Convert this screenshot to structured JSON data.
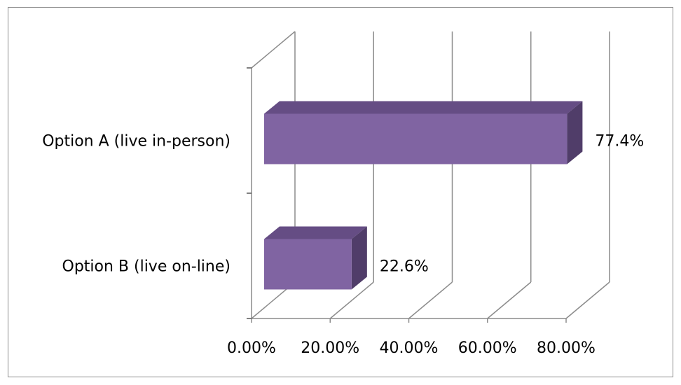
{
  "chart_data": {
    "type": "bar",
    "orientation": "horizontal",
    "style": "3d",
    "categories": [
      "Option A (live in-person)",
      "Option B (live on-line)"
    ],
    "values": [
      77.4,
      22.6
    ],
    "data_labels": [
      "77.4%",
      "22.6%"
    ],
    "x_ticks": [
      "0.00%",
      "20.00%",
      "40.00%",
      "60.00%",
      "80.00%"
    ],
    "xlim": [
      0,
      80
    ],
    "grid": true,
    "legend": "none",
    "title": "",
    "xlabel": "",
    "ylabel": "",
    "colors": {
      "bar_front": "#8064a2",
      "bar_top": "#654d84",
      "bar_side": "#503d69",
      "grid": "#8c8c8c",
      "frame": "#8c8c8c"
    }
  }
}
